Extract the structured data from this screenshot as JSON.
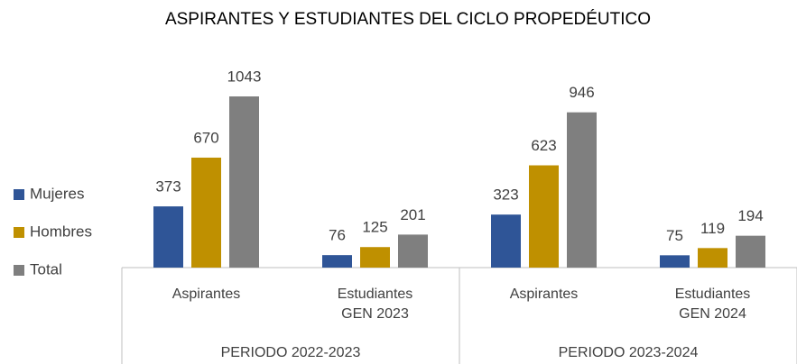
{
  "chart_data": {
    "type": "bar",
    "title": "ASPIRANTES Y ESTUDIANTES DEL CICLO PROPEDÉUTICO",
    "groups": [
      {
        "label": "PERIODO 2022-2023",
        "categories": [
          "Aspirantes",
          "Estudiantes GEN 2023"
        ]
      },
      {
        "label": "PERIODO 2023-2024",
        "categories": [
          "Aspirantes",
          "Estudiantes GEN 2024"
        ]
      }
    ],
    "series": [
      {
        "name": "Mujeres",
        "color": "#2f5597",
        "values": [
          373,
          76,
          323,
          75
        ]
      },
      {
        "name": "Hombres",
        "color": "#bf9000",
        "values": [
          670,
          125,
          623,
          119
        ]
      },
      {
        "name": "Total",
        "color": "#7f7f7f",
        "values": [
          1043,
          201,
          946,
          194
        ]
      }
    ],
    "legend": "left"
  }
}
